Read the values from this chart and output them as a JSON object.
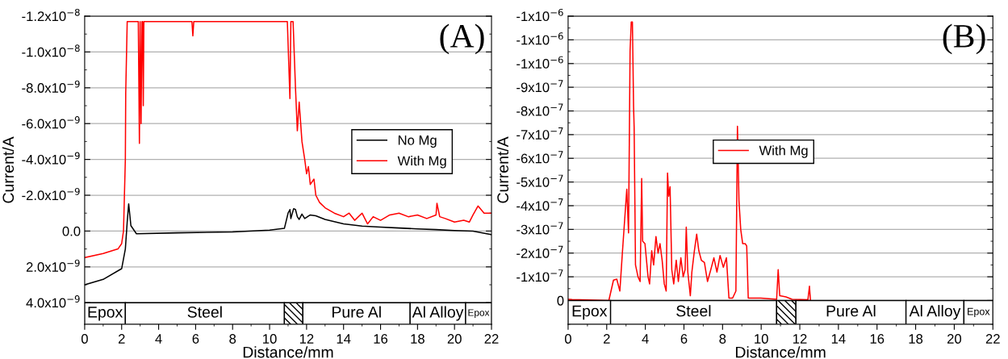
{
  "chart_data": [
    {
      "type": "line",
      "xlabel": "Distance/mm",
      "ylabel": "Current/A",
      "annotations": [
        "(A)"
      ],
      "xlim": [
        0,
        22
      ],
      "xticks": [
        0,
        2,
        4,
        6,
        8,
        10,
        12,
        14,
        16,
        18,
        20,
        22
      ],
      "ylim": [
        5.2e-09,
        -1.2e-08
      ],
      "yticks": [
        {
          "value": -1.2e-08,
          "label": "-1.2x10$^{−8}$"
        },
        {
          "value": -1e-08,
          "label": "-1.0x10$^{−8}$"
        },
        {
          "value": -8e-09,
          "label": "-8.0x10$^{−9}$"
        },
        {
          "value": -6e-09,
          "label": "-6.0x10$^{−9}$"
        },
        {
          "value": -4e-09,
          "label": "-4.0x10$^{−9}$"
        },
        {
          "value": -2e-09,
          "label": "-2.0x10$^{−9}$"
        },
        {
          "value": 0,
          "label": "0.0"
        },
        {
          "value": 2e-09,
          "label": "2.0x10$^{−9}$"
        },
        {
          "value": 4e-09,
          "label": "4.0x10$^{−9}$"
        }
      ],
      "grid": "y",
      "legend": "right",
      "line_style": "solid",
      "marker": "none",
      "bands": [
        {
          "axis": "x",
          "from": 0,
          "to": 2.2,
          "label": "Epox"
        },
        {
          "axis": "x",
          "from": 2.2,
          "to": 10.8,
          "label": "Steel"
        },
        {
          "axis": "x",
          "from": 10.8,
          "to": 11.8,
          "label": null
        },
        {
          "axis": "x",
          "from": 11.8,
          "to": 17.6,
          "label": "Pure Al"
        },
        {
          "axis": "x",
          "from": 17.6,
          "to": 20.6,
          "label": "Al Alloy"
        },
        {
          "axis": "x",
          "from": 20.6,
          "to": 22,
          "label": "Epox"
        }
      ],
      "series": [
        {
          "name": "No Mg",
          "color": "#000000",
          "x": [
            0,
            1.0,
            2.0,
            2.2,
            2.3,
            2.38,
            2.5,
            2.8,
            5,
            8,
            10,
            10.8,
            11.0,
            11.1,
            11.15,
            11.3,
            11.4,
            11.5,
            11.6,
            11.75,
            11.9,
            12.2,
            12.5,
            13,
            14,
            15,
            16,
            17,
            18,
            19,
            20,
            21,
            22
          ],
          "values": [
            3e-09,
            2.7e-09,
            2.1e-09,
            1e-09,
            -5e-10,
            -1.52e-09,
            -3e-10,
            1.5e-10,
            1e-10,
            5e-11,
            -5e-11,
            -1.5e-10,
            -1e-09,
            -1.2e-09,
            -7e-10,
            -1.25e-09,
            -1.2e-09,
            -8e-10,
            -6.5e-10,
            -9.5e-10,
            -7e-10,
            -9e-10,
            -8.5e-10,
            -6.5e-10,
            -4e-10,
            -2.8e-10,
            -2.2e-10,
            -1.7e-10,
            -1.2e-10,
            -8e-11,
            -3e-11,
            0,
            2e-10
          ]
        },
        {
          "name": "With Mg",
          "color": "#ff0000",
          "x": [
            0,
            1.0,
            1.8,
            2.0,
            2.1,
            2.15,
            2.2,
            2.22,
            2.3,
            2.9,
            2.96,
            3.0,
            3.05,
            3.1,
            3.13,
            3.17,
            3.2,
            5.8,
            5.85,
            5.9,
            10.96,
            11.1,
            11.15,
            11.27,
            11.4,
            11.5,
            11.6,
            11.75,
            11.9,
            12.0,
            12.1,
            12.2,
            12.4,
            12.5,
            12.7,
            13.0,
            13.5,
            14.0,
            14.3,
            14.6,
            15.0,
            15.3,
            15.6,
            16.0,
            16.5,
            17.0,
            17.5,
            18.0,
            18.5,
            19.0,
            19.05,
            19.2,
            19.5,
            20.0,
            20.5,
            20.8,
            21.0,
            21.27,
            21.6,
            22.0
          ],
          "values": [
            1.48e-09,
            1.25e-09,
            1e-09,
            7e-10,
            0,
            -2e-09,
            -4e-09,
            -7.7e-09,
            -1.17e-08,
            -1.17e-08,
            -4.9e-09,
            -1.17e-08,
            -6e-09,
            -1.17e-08,
            -1.17e-08,
            -7e-09,
            -1.17e-08,
            -1.17e-08,
            -1.09e-08,
            -1.17e-08,
            -1.17e-08,
            -7.4e-09,
            -1.17e-08,
            -1.17e-08,
            -8e-09,
            -5.6e-09,
            -7.2e-09,
            -5e-09,
            -4e-09,
            -3.2e-09,
            -3.6e-09,
            -2.6e-09,
            -2.9e-09,
            -2e-09,
            -1.6e-09,
            -1.3e-09,
            -1e-09,
            -8e-10,
            -1e-09,
            -6e-10,
            -1e-09,
            -4e-10,
            -8e-10,
            -6e-10,
            -9e-10,
            -1e-09,
            -8e-10,
            -9e-10,
            -7e-10,
            -9e-10,
            -1.55e-09,
            -8e-10,
            -7e-10,
            -5e-10,
            -6e-10,
            -5e-10,
            -9e-10,
            -1.4e-09,
            -1e-09,
            -1e-09
          ]
        }
      ]
    },
    {
      "type": "line",
      "xlabel": "Distance/mm",
      "ylabel": "Current/A",
      "annotations": [
        "(B)"
      ],
      "xlim": [
        0,
        22
      ],
      "xticks": [
        0,
        2,
        4,
        6,
        8,
        10,
        12,
        14,
        16,
        18,
        20,
        22
      ],
      "ylim": [
        1e-07,
        -1.2e-06
      ],
      "yticks": [
        {
          "value": -1.2e-06,
          "label": "-1x10$^{−6}$"
        },
        {
          "value": -1.1e-06,
          "label": "-1x10$^{−6}$"
        },
        {
          "value": -1e-06,
          "label": "-1x10$^{−6}$"
        },
        {
          "value": -9e-07,
          "label": "-9x10$^{−7}$"
        },
        {
          "value": -8e-07,
          "label": "-8x10$^{−7}$"
        },
        {
          "value": -7e-07,
          "label": "-7x10$^{−7}$"
        },
        {
          "value": -6e-07,
          "label": "-6x10$^{−7}$"
        },
        {
          "value": -5e-07,
          "label": "-5x10$^{−7}$"
        },
        {
          "value": -4e-07,
          "label": "-4x10$^{−7}$"
        },
        {
          "value": -3e-07,
          "label": "-3x10$^{−7}$"
        },
        {
          "value": -2e-07,
          "label": "-2x10$^{−7}$"
        },
        {
          "value": -1e-07,
          "label": "-1x10$^{−7}$"
        },
        {
          "value": 0,
          "label": "0"
        }
      ],
      "grid": "y",
      "legend": "center",
      "line_style": "solid",
      "marker": "none",
      "bands": [
        {
          "axis": "x",
          "from": 0,
          "to": 2.2,
          "label": "Epox"
        },
        {
          "axis": "x",
          "from": 2.2,
          "to": 10.8,
          "label": "Steel"
        },
        {
          "axis": "x",
          "from": 10.8,
          "to": 11.8,
          "label": null
        },
        {
          "axis": "x",
          "from": 11.8,
          "to": 17.5,
          "label": "Pure Al"
        },
        {
          "axis": "x",
          "from": 17.5,
          "to": 20.5,
          "label": "Al Alloy"
        },
        {
          "axis": "x",
          "from": 20.5,
          "to": 22,
          "label": "Epox"
        }
      ],
      "series": [
        {
          "name": "With Mg",
          "color": "#ff0000",
          "x": [
            0,
            0.2,
            2.11,
            2.35,
            2.52,
            2.68,
            2.81,
            2.92,
            3.04,
            3.13,
            3.21,
            3.27,
            3.33,
            3.36,
            3.39,
            3.42,
            3.46,
            3.49,
            3.62,
            3.73,
            3.81,
            3.86,
            3.98,
            4.14,
            4.22,
            4.33,
            4.43,
            4.55,
            4.66,
            4.76,
            4.87,
            4.98,
            5.08,
            5.15,
            5.21,
            5.28,
            5.37,
            5.47,
            5.6,
            5.71,
            5.84,
            5.96,
            6.06,
            6.12,
            6.2,
            6.33,
            6.41,
            6.54,
            6.66,
            6.77,
            6.9,
            7.06,
            7.22,
            7.39,
            7.55,
            7.71,
            7.87,
            8.04,
            8.2,
            8.33,
            8.52,
            8.69,
            8.77,
            8.85,
            8.94,
            9.04,
            9.17,
            9.25,
            9.33,
            9.98,
            10.8,
            10.88,
            10.96,
            11.28,
            11.6,
            12.42,
            12.5,
            12.55
          ],
          "values": [
            -5e-09,
            -4e-09,
            0,
            -8.6e-08,
            -9e-08,
            -4e-08,
            -2e-07,
            -3.3e-07,
            -4.7e-07,
            -2.85e-07,
            -1.055e-06,
            -1.175e-06,
            -1.175e-06,
            -1e-06,
            -8.2e-07,
            -7.3e-07,
            -4e-07,
            -1.5e-07,
            -1e-07,
            -8e-08,
            -5.15e-07,
            -2.5e-07,
            -2.4e-07,
            -1e-07,
            -7e-08,
            -2.1e-07,
            -1.5e-07,
            -2.7e-07,
            -2e-07,
            -2.4e-07,
            -1.7e-07,
            -7e-08,
            -4e-08,
            -5.38e-07,
            -4.4e-07,
            -4.8e-07,
            -1.3e-07,
            -7e-08,
            -1.7e-07,
            -8e-08,
            -1.8e-07,
            -1e-07,
            -1.3e-07,
            -3.1e-07,
            -1.2e-07,
            -2e-08,
            -1.2e-07,
            -2.1e-07,
            -2.8e-07,
            -2.1e-07,
            -1.7e-07,
            -1.6e-07,
            -8e-08,
            -1.3e-07,
            -1.8e-07,
            -1.2e-07,
            -1.9e-07,
            -1.4e-07,
            -1.8e-07,
            -1e-08,
            -1e-08,
            -4e-08,
            -7.35e-07,
            -4.2e-07,
            -3e-07,
            -2.4e-07,
            -2.4e-07,
            -2.3e-07,
            -1e-08,
            -1e-08,
            -5e-09,
            -1.3e-07,
            -2e-08,
            -1.5e-08,
            -5e-09,
            -3e-09,
            -6e-08,
            -2e-09
          ]
        }
      ]
    }
  ]
}
